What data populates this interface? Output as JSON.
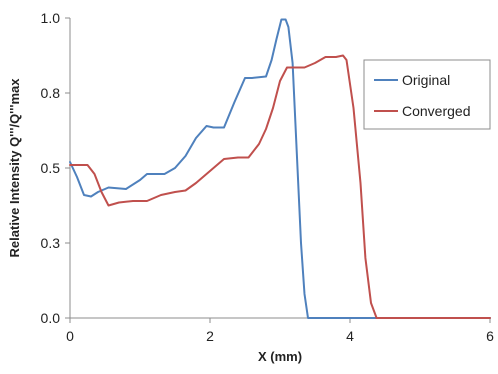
{
  "chart_data": {
    "type": "line",
    "title": "",
    "xlabel": "X (mm)",
    "ylabel": "Relative Intensity Q'''/Q'''max",
    "xlim": [
      0,
      6
    ],
    "ylim": [
      0,
      1.0
    ],
    "x_ticks": [
      0,
      2,
      4,
      6
    ],
    "y_ticks": [
      0.0,
      0.25,
      0.5,
      0.75,
      1.0
    ],
    "x_tick_labels": [
      "0",
      "2",
      "4",
      "6"
    ],
    "y_tick_labels": [
      "0.0",
      "0.3",
      "0.5",
      "0.8",
      "1.0"
    ],
    "grid": false,
    "legend_position": "right",
    "series": [
      {
        "name": "Original",
        "color": "#4f81bd",
        "points": [
          [
            0.0,
            0.52
          ],
          [
            0.1,
            0.47
          ],
          [
            0.2,
            0.41
          ],
          [
            0.3,
            0.405
          ],
          [
            0.4,
            0.42
          ],
          [
            0.55,
            0.435
          ],
          [
            0.8,
            0.43
          ],
          [
            1.0,
            0.46
          ],
          [
            1.1,
            0.48
          ],
          [
            1.35,
            0.48
          ],
          [
            1.5,
            0.5
          ],
          [
            1.65,
            0.54
          ],
          [
            1.8,
            0.6
          ],
          [
            1.95,
            0.64
          ],
          [
            2.05,
            0.635
          ],
          [
            2.2,
            0.635
          ],
          [
            2.35,
            0.72
          ],
          [
            2.5,
            0.8
          ],
          [
            2.6,
            0.8
          ],
          [
            2.8,
            0.805
          ],
          [
            2.88,
            0.86
          ],
          [
            2.95,
            0.93
          ],
          [
            3.02,
            0.995
          ],
          [
            3.08,
            0.995
          ],
          [
            3.12,
            0.97
          ],
          [
            3.18,
            0.85
          ],
          [
            3.25,
            0.5
          ],
          [
            3.3,
            0.25
          ],
          [
            3.35,
            0.08
          ],
          [
            3.4,
            0.0
          ],
          [
            6.0,
            0.0
          ]
        ]
      },
      {
        "name": "Converged",
        "color": "#c0504d",
        "points": [
          [
            0.0,
            0.51
          ],
          [
            0.1,
            0.51
          ],
          [
            0.25,
            0.51
          ],
          [
            0.35,
            0.48
          ],
          [
            0.45,
            0.42
          ],
          [
            0.55,
            0.375
          ],
          [
            0.7,
            0.385
          ],
          [
            0.9,
            0.39
          ],
          [
            1.1,
            0.39
          ],
          [
            1.3,
            0.41
          ],
          [
            1.5,
            0.42
          ],
          [
            1.65,
            0.425
          ],
          [
            1.8,
            0.45
          ],
          [
            2.0,
            0.49
          ],
          [
            2.2,
            0.53
          ],
          [
            2.4,
            0.535
          ],
          [
            2.55,
            0.535
          ],
          [
            2.7,
            0.58
          ],
          [
            2.8,
            0.63
          ],
          [
            2.9,
            0.7
          ],
          [
            3.0,
            0.79
          ],
          [
            3.1,
            0.835
          ],
          [
            3.2,
            0.835
          ],
          [
            3.35,
            0.835
          ],
          [
            3.5,
            0.85
          ],
          [
            3.65,
            0.87
          ],
          [
            3.8,
            0.87
          ],
          [
            3.9,
            0.875
          ],
          [
            3.95,
            0.86
          ],
          [
            4.05,
            0.7
          ],
          [
            4.15,
            0.45
          ],
          [
            4.22,
            0.2
          ],
          [
            4.3,
            0.05
          ],
          [
            4.38,
            0.0
          ],
          [
            6.0,
            0.0
          ]
        ]
      }
    ]
  }
}
